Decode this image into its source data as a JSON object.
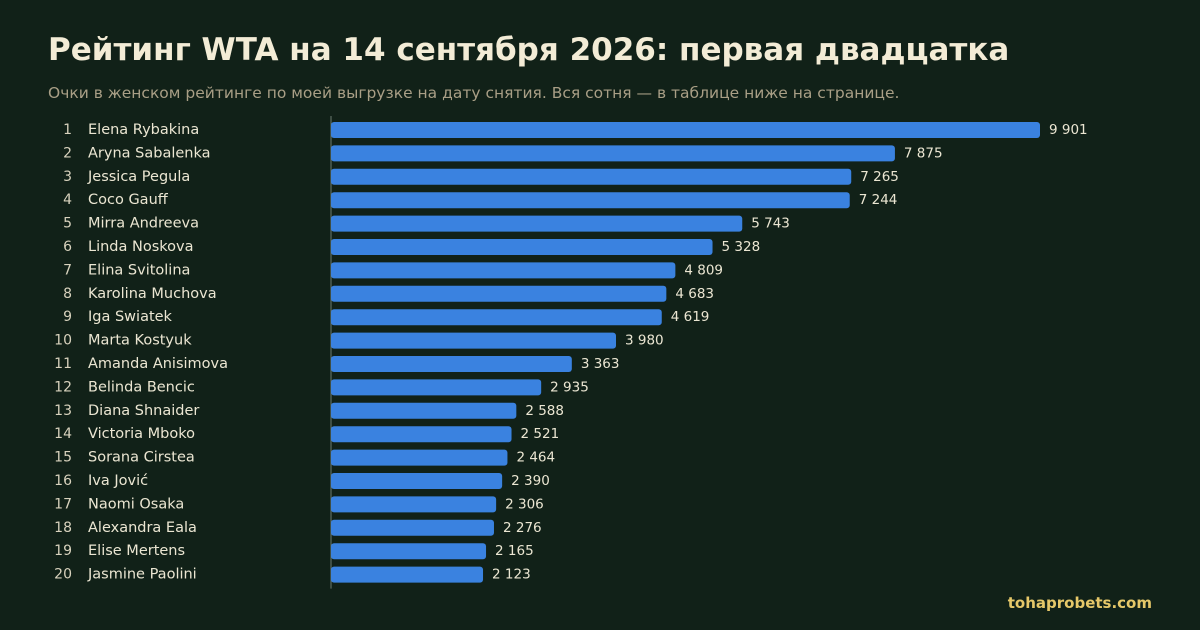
{
  "header": {
    "title": "Рейтинг WTA на 14 сентября 2026: первая двадцатка",
    "subtitle": "Очки в женском рейтинге по моей выгрузке на дату снятия. Вся сотня — в таблице ниже на странице."
  },
  "footer": {
    "brand": "tohaprobets.com"
  },
  "colors": {
    "background": "#112118",
    "bar": "#3a82e0",
    "axis": "#6a7a70",
    "brand": "#e6c869"
  },
  "chart_data": {
    "type": "bar",
    "orientation": "horizontal",
    "title": "Рейтинг WTA на 14 сентября 2026: первая двадцатка",
    "subtitle": "Очки в женском рейтинге по моей выгрузке на дату снятия. Вся сотня — в таблице ниже на странице.",
    "xlim": [
      0,
      9901
    ],
    "grid": false,
    "ranks": [
      "1",
      "2",
      "3",
      "4",
      "5",
      "6",
      "7",
      "8",
      "9",
      "10",
      "11",
      "12",
      "13",
      "14",
      "15",
      "16",
      "17",
      "18",
      "19",
      "20"
    ],
    "categories": [
      "Elena Rybakina",
      "Aryna Sabalenka",
      "Jessica Pegula",
      "Coco Gauff",
      "Mirra Andreeva",
      "Linda Noskova",
      "Elina Svitolina",
      "Karolina Muchova",
      "Iga Swiatek",
      "Marta Kostyuk",
      "Amanda Anisimova",
      "Belinda Bencic",
      "Diana Shnaider",
      "Victoria Mboko",
      "Sorana Cirstea",
      "Iva Jović",
      "Naomi Osaka",
      "Alexandra Eala",
      "Elise Mertens",
      "Jasmine Paolini"
    ],
    "values": [
      9901,
      7875,
      7265,
      7244,
      5743,
      5328,
      4809,
      4683,
      4619,
      3980,
      3363,
      2935,
      2588,
      2521,
      2464,
      2390,
      2306,
      2276,
      2165,
      2123
    ],
    "value_labels": [
      "9 901",
      "7 875",
      "7 265",
      "7 244",
      "5 743",
      "5 328",
      "4 809",
      "4 683",
      "4 619",
      "3 980",
      "3 363",
      "2 935",
      "2 588",
      "2 521",
      "2 464",
      "2 390",
      "2 306",
      "2 276",
      "2 165",
      "2 123"
    ]
  }
}
